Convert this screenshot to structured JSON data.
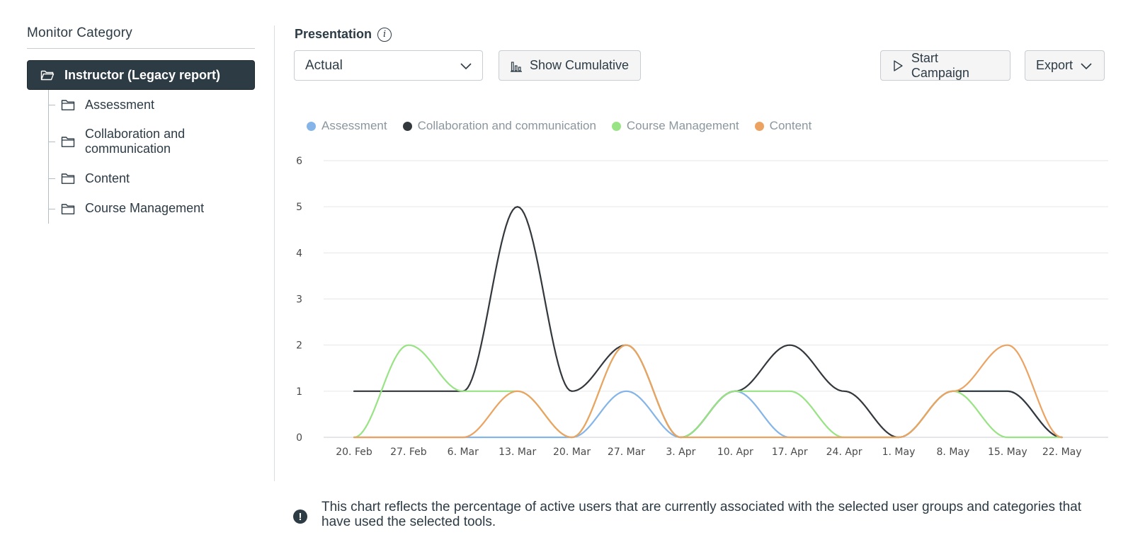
{
  "sidebar": {
    "title": "Monitor Category",
    "root": {
      "label": "Instructor (Legacy report)"
    },
    "items": [
      {
        "label": "Assessment"
      },
      {
        "label": "Collaboration and communication"
      },
      {
        "label": "Content"
      },
      {
        "label": "Course Management"
      }
    ]
  },
  "toolbar": {
    "presentation_label": "Presentation",
    "info_icon": "i",
    "select_value": "Actual",
    "cumulative_label": "Show Cumulative",
    "campaign_label": "Start Campaign",
    "export_label": "Export"
  },
  "colors": {
    "assessment": "#85b5e8",
    "collaboration": "#33383d",
    "course_management": "#98e384",
    "content": "#eca362",
    "sidebar_active": "#2d3b45"
  },
  "chart_data": {
    "type": "line",
    "smooth": true,
    "categories": [
      "20. Feb",
      "27. Feb",
      "6. Mar",
      "13. Mar",
      "20. Mar",
      "27. Mar",
      "3. Apr",
      "10. Apr",
      "17. Apr",
      "24. Apr",
      "1. May",
      "8. May",
      "15. May",
      "22. May"
    ],
    "ylim": [
      0,
      6
    ],
    "yticks": [
      "0",
      "1",
      "2",
      "3",
      "4",
      "5",
      "6"
    ],
    "grid": true,
    "legend_position": "top-left",
    "series": [
      {
        "name": "Assessment",
        "color": "#85b5e8",
        "values": [
          0,
          0,
          0,
          0,
          0,
          1,
          0,
          1,
          0,
          0,
          0,
          1,
          1,
          0
        ]
      },
      {
        "name": "Collaboration and communication",
        "color": "#33383d",
        "values": [
          1,
          1,
          1,
          5,
          1,
          2,
          0,
          1,
          2,
          1,
          0,
          1,
          1,
          0
        ]
      },
      {
        "name": "Course Management",
        "color": "#98e384",
        "values": [
          0,
          2,
          1,
          1,
          0,
          2,
          0,
          1,
          1,
          0,
          0,
          1,
          0,
          0
        ]
      },
      {
        "name": "Content",
        "color": "#eca362",
        "values": [
          0,
          0,
          0,
          1,
          0,
          2,
          0,
          0,
          0,
          0,
          0,
          1,
          2,
          0
        ]
      }
    ]
  },
  "note": {
    "icon": "!",
    "text": "This chart reflects the percentage of active users that are currently associated with the selected user groups and categories that have used the selected tools."
  }
}
